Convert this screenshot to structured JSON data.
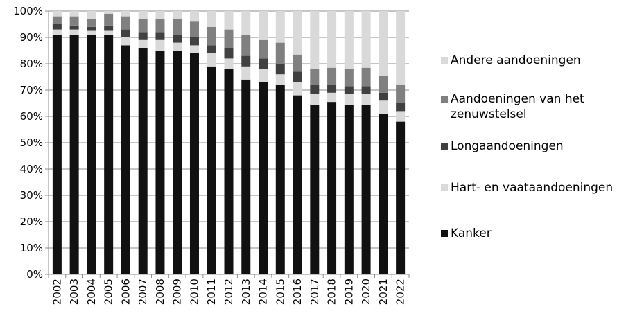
{
  "chart_data": {
    "type": "bar",
    "stacked": true,
    "categories": [
      "2002",
      "2003",
      "2004",
      "2005",
      "2006",
      "2007",
      "2008",
      "2009",
      "2010",
      "2011",
      "2012",
      "2013",
      "2014",
      "2015",
      "2016",
      "2017",
      "2018",
      "2019",
      "2020",
      "2021",
      "2022"
    ],
    "y_ticks": [
      "0%",
      "10%",
      "20%",
      "30%",
      "40%",
      "50%",
      "60%",
      "70%",
      "80%",
      "90%",
      "100%"
    ],
    "ylim": [
      0,
      100
    ],
    "grid": true,
    "legend_position": "right",
    "series": [
      {
        "name": "Kanker",
        "color": "#111111",
        "values": [
          91,
          91,
          91,
          91,
          87,
          86,
          85,
          85,
          84,
          79,
          78,
          74,
          73,
          72,
          68,
          64.5,
          65.5,
          64.5,
          64.5,
          61,
          58
        ]
      },
      {
        "name": "Hart- en vaataandoeningen",
        "color": "#d9d9d9",
        "values": [
          2,
          2,
          1.5,
          1.5,
          3,
          3,
          4,
          3,
          3,
          5,
          4,
          5,
          5,
          4,
          5,
          4,
          3.5,
          4,
          4,
          5,
          4
        ]
      },
      {
        "name": "Longaandoeningen",
        "color": "#404040",
        "values": [
          2,
          1.5,
          1.5,
          2,
          3,
          3,
          3,
          3,
          3,
          3,
          4,
          4,
          4,
          4,
          4,
          3.5,
          3,
          3,
          3,
          3,
          3
        ]
      },
      {
        "name": "Aandoeningen van het zenuwstelsel",
        "color": "#808080",
        "values": [
          3,
          3.5,
          3,
          4.5,
          5,
          5,
          5,
          6,
          6,
          7,
          7,
          8,
          7,
          8,
          6.5,
          6,
          6.5,
          6.5,
          7,
          6.5,
          7
        ]
      },
      {
        "name": "Andere aandoeningen",
        "color": "#d9d9d9",
        "values": [
          2,
          2,
          3,
          1,
          2,
          3,
          3,
          3,
          4,
          6,
          7,
          9,
          11,
          12,
          16.5,
          22,
          21.5,
          22,
          21.5,
          24.5,
          28
        ]
      }
    ],
    "legend_order": [
      "Andere aandoeningen",
      "Aandoeningen van het zenuwstelsel",
      "Longaandoeningen",
      "Hart- en vaataandoeningen",
      "Kanker"
    ]
  }
}
